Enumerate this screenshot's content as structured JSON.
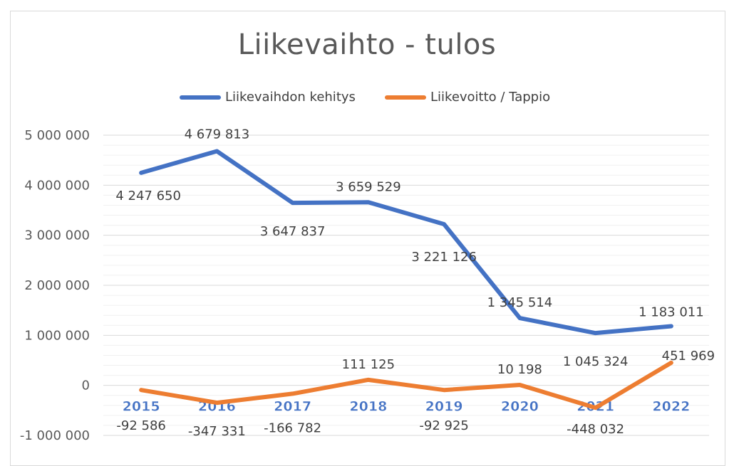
{
  "chart_data": {
    "type": "line",
    "title": "Liikevaihto - tulos",
    "categories": [
      "2015",
      "2016",
      "2017",
      "2018",
      "2019",
      "2020",
      "2021",
      "2022"
    ],
    "series": [
      {
        "name": "Liikevaihdon kehitys",
        "color": "#4472c4",
        "values": [
          4247650,
          4679813,
          3647837,
          3659529,
          3221126,
          1345514,
          1045324,
          1183011
        ],
        "labels": [
          "4 247 650",
          "4 679 813",
          "3 647 837",
          "3 659 529",
          "3 221 126",
          "1 345 514",
          "1 045 324",
          "1 183 011"
        ]
      },
      {
        "name": "Liikevoitto / Tappio",
        "color": "#ed7d31",
        "values": [
          -92586,
          -347331,
          -166782,
          111125,
          -92925,
          10198,
          -448032,
          451969
        ],
        "labels": [
          "-92 586",
          "-347 331",
          "-166 782",
          "111 125",
          "-92 925",
          "10 198",
          "-448 032",
          "451 969"
        ]
      }
    ],
    "yticks": [
      5000000,
      4000000,
      3000000,
      2000000,
      1000000,
      0,
      -1000000
    ],
    "ytick_labels": [
      "5 000 000",
      "4 000 000",
      "3 000 000",
      "2 000 000",
      "1 000 000",
      "0",
      "-1 000 000"
    ],
    "ylim": [
      -1000000,
      5000000
    ],
    "xlabel": "",
    "ylabel": "",
    "legend_position": "top",
    "grid": true
  }
}
